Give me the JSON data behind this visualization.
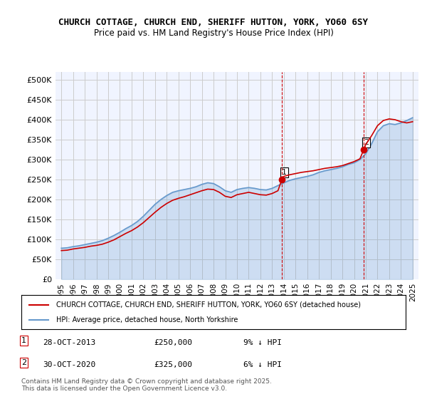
{
  "title_line1": "CHURCH COTTAGE, CHURCH END, SHERIFF HUTTON, YORK, YO60 6SY",
  "title_line2": "Price paid vs. HM Land Registry's House Price Index (HPI)",
  "ylabel": "",
  "ylim": [
    0,
    520000
  ],
  "yticks": [
    0,
    50000,
    100000,
    150000,
    200000,
    250000,
    300000,
    350000,
    400000,
    450000,
    500000
  ],
  "ytick_labels": [
    "£0",
    "£50K",
    "£100K",
    "£150K",
    "£200K",
    "£250K",
    "£300K",
    "£350K",
    "£400K",
    "£450K",
    "£500K"
  ],
  "background_color": "#f0f4ff",
  "plot_bg_color": "#f0f4ff",
  "grid_color": "#cccccc",
  "red_line_color": "#cc0000",
  "blue_line_color": "#6699cc",
  "sale1_x": 2013.83,
  "sale1_y": 250000,
  "sale1_label": "1",
  "sale2_x": 2020.83,
  "sale2_y": 325000,
  "sale2_label": "2",
  "vline1_x": 2013.83,
  "vline2_x": 2020.83,
  "vline_color": "#cc0000",
  "legend_entry1": "CHURCH COTTAGE, CHURCH END, SHERIFF HUTTON, YORK, YO60 6SY (detached house)",
  "legend_entry2": "HPI: Average price, detached house, North Yorkshire",
  "annotation1_date": "28-OCT-2013",
  "annotation1_price": "£250,000",
  "annotation1_pct": "9% ↓ HPI",
  "annotation2_date": "30-OCT-2020",
  "annotation2_price": "£325,000",
  "annotation2_pct": "6% ↓ HPI",
  "footer": "Contains HM Land Registry data © Crown copyright and database right 2025.\nThis data is licensed under the Open Government Licence v3.0.",
  "hpi_years": [
    1995,
    1995.5,
    1996,
    1996.5,
    1997,
    1997.5,
    1998,
    1998.5,
    1999,
    1999.5,
    2000,
    2000.5,
    2001,
    2001.5,
    2002,
    2002.5,
    2003,
    2003.5,
    2004,
    2004.5,
    2005,
    2005.5,
    2006,
    2006.5,
    2007,
    2007.5,
    2008,
    2008.5,
    2009,
    2009.5,
    2010,
    2010.5,
    2011,
    2011.5,
    2012,
    2012.5,
    2013,
    2013.5,
    2014,
    2014.5,
    2015,
    2015.5,
    2016,
    2016.5,
    2017,
    2017.5,
    2018,
    2018.5,
    2019,
    2019.5,
    2020,
    2020.5,
    2021,
    2021.5,
    2022,
    2022.5,
    2023,
    2023.5,
    2024,
    2024.5,
    2025
  ],
  "hpi_values": [
    78000,
    79000,
    82000,
    84000,
    87000,
    90000,
    93000,
    97000,
    103000,
    110000,
    118000,
    127000,
    135000,
    145000,
    158000,
    173000,
    188000,
    200000,
    210000,
    218000,
    222000,
    225000,
    228000,
    232000,
    238000,
    242000,
    240000,
    232000,
    222000,
    218000,
    225000,
    228000,
    230000,
    228000,
    225000,
    224000,
    228000,
    235000,
    242000,
    248000,
    252000,
    255000,
    258000,
    262000,
    268000,
    272000,
    275000,
    278000,
    282000,
    288000,
    292000,
    300000,
    315000,
    340000,
    370000,
    385000,
    390000,
    388000,
    392000,
    398000,
    405000
  ],
  "red_years": [
    1995,
    1995.5,
    1996,
    1996.5,
    1997,
    1997.5,
    1998,
    1998.5,
    1999,
    1999.5,
    2000,
    2000.5,
    2001,
    2001.5,
    2002,
    2002.5,
    2003,
    2003.5,
    2004,
    2004.5,
    2005,
    2005.5,
    2006,
    2006.5,
    2007,
    2007.5,
    2008,
    2008.5,
    2009,
    2009.5,
    2010,
    2010.5,
    2011,
    2011.5,
    2012,
    2012.5,
    2013,
    2013.5,
    2013.83,
    2014,
    2014.5,
    2015,
    2015.5,
    2016,
    2016.5,
    2017,
    2017.5,
    2018,
    2018.5,
    2019,
    2019.5,
    2020,
    2020.5,
    2020.83,
    2021,
    2021.5,
    2022,
    2022.5,
    2023,
    2023.5,
    2024,
    2024.5,
    2025
  ],
  "red_values": [
    72000,
    73000,
    76000,
    78000,
    80000,
    83000,
    85000,
    88000,
    93000,
    99000,
    107000,
    115000,
    122000,
    131000,
    142000,
    155000,
    168000,
    180000,
    190000,
    198000,
    203000,
    207000,
    212000,
    217000,
    222000,
    226000,
    225000,
    218000,
    208000,
    205000,
    212000,
    215000,
    218000,
    215000,
    212000,
    211000,
    215000,
    222000,
    250000,
    258000,
    262000,
    265000,
    268000,
    270000,
    272000,
    275000,
    278000,
    280000,
    282000,
    285000,
    290000,
    295000,
    302000,
    325000,
    338000,
    360000,
    385000,
    398000,
    402000,
    400000,
    395000,
    392000,
    395000
  ],
  "xtick_years": [
    1995,
    1996,
    1997,
    1998,
    1999,
    2000,
    2001,
    2002,
    2003,
    2004,
    2005,
    2006,
    2007,
    2008,
    2009,
    2010,
    2011,
    2012,
    2013,
    2014,
    2015,
    2016,
    2017,
    2018,
    2019,
    2020,
    2021,
    2022,
    2023,
    2024,
    2025
  ]
}
